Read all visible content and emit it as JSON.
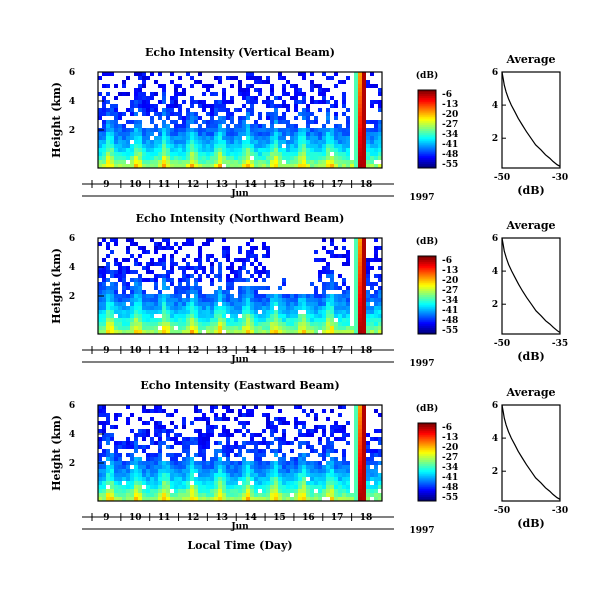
{
  "figure": {
    "xlabel": "Local Time (Day)",
    "month_label": "Jun",
    "year_label": "1997"
  },
  "chart_data": [
    {
      "type": "heatmap",
      "title": "Echo Intensity (Vertical Beam)",
      "ylabel": "Height (km)",
      "xlabel": "Local Time (Day)",
      "x_ticks": [
        "9",
        "10",
        "11",
        "12",
        "13",
        "14",
        "15",
        "16",
        "17",
        "18"
      ],
      "y_ticks": [
        "2",
        "4",
        "6"
      ],
      "colorbar": {
        "unit": "(dB)",
        "ticks": [
          "-6",
          "-13",
          "-20",
          "-27",
          "-34",
          "-41",
          "-48",
          "-55"
        ]
      }
    },
    {
      "type": "line",
      "title": "Average",
      "xlabel": "(dB)",
      "x_ticks": [
        "-50",
        "-30"
      ],
      "y_ticks": [
        "2",
        "4",
        "6"
      ],
      "xlim": [
        -50,
        -30
      ],
      "ylim": [
        0.2,
        6
      ],
      "profile": [
        [
          -50,
          6
        ],
        [
          -49.6,
          5.6
        ],
        [
          -49.2,
          5.2
        ],
        [
          -48.6,
          4.8
        ],
        [
          -47.8,
          4.4
        ],
        [
          -46.8,
          4.0
        ],
        [
          -45.6,
          3.6
        ],
        [
          -44.4,
          3.2
        ],
        [
          -43,
          2.8
        ],
        [
          -41.6,
          2.4
        ],
        [
          -40,
          2.0
        ],
        [
          -38.4,
          1.6
        ],
        [
          -36.6,
          1.3
        ],
        [
          -35,
          1.0
        ],
        [
          -33.6,
          0.8
        ],
        [
          -32.4,
          0.6
        ],
        [
          -31,
          0.4
        ],
        [
          -30,
          0.3
        ]
      ]
    },
    {
      "type": "heatmap",
      "title": "Echo Intensity (Northward Beam)",
      "ylabel": "Height (km)",
      "xlabel": "Local Time (Day)",
      "x_ticks": [
        "9",
        "10",
        "11",
        "12",
        "13",
        "14",
        "15",
        "16",
        "17",
        "18"
      ],
      "y_ticks": [
        "2",
        "4",
        "6"
      ],
      "colorbar": {
        "unit": "(dB)",
        "ticks": [
          "-6",
          "-13",
          "-20",
          "-27",
          "-34",
          "-41",
          "-48",
          "-55"
        ]
      }
    },
    {
      "type": "line",
      "title": "Average",
      "xlabel": "(dB)",
      "x_ticks": [
        "-50",
        "-35"
      ],
      "y_ticks": [
        "2",
        "4",
        "6"
      ],
      "xlim": [
        -50,
        -35
      ],
      "ylim": [
        0.2,
        6
      ],
      "profile": [
        [
          -50,
          6
        ],
        [
          -49.7,
          5.6
        ],
        [
          -49.4,
          5.2
        ],
        [
          -48.9,
          4.8
        ],
        [
          -48.3,
          4.4
        ],
        [
          -47.5,
          4.0
        ],
        [
          -46.6,
          3.6
        ],
        [
          -45.7,
          3.2
        ],
        [
          -44.7,
          2.8
        ],
        [
          -43.6,
          2.4
        ],
        [
          -42.4,
          2.0
        ],
        [
          -41.2,
          1.6
        ],
        [
          -39.9,
          1.3
        ],
        [
          -38.7,
          1.0
        ],
        [
          -37.6,
          0.8
        ],
        [
          -36.7,
          0.6
        ],
        [
          -35.7,
          0.4
        ],
        [
          -35.1,
          0.3
        ]
      ]
    },
    {
      "type": "heatmap",
      "title": "Echo Intensity (Eastward Beam)",
      "ylabel": "Height (km)",
      "xlabel": "Local Time (Day)",
      "x_ticks": [
        "9",
        "10",
        "11",
        "12",
        "13",
        "14",
        "15",
        "16",
        "17",
        "18"
      ],
      "y_ticks": [
        "2",
        "4",
        "6"
      ],
      "colorbar": {
        "unit": "(dB)",
        "ticks": [
          "-6",
          "-13",
          "-20",
          "-27",
          "-34",
          "-41",
          "-48",
          "-55"
        ]
      }
    },
    {
      "type": "line",
      "title": "Average",
      "xlabel": "(dB)",
      "x_ticks": [
        "-50",
        "-30"
      ],
      "y_ticks": [
        "2",
        "4",
        "6"
      ],
      "xlim": [
        -50,
        -30
      ],
      "ylim": [
        0.2,
        6
      ],
      "profile": [
        [
          -50,
          6
        ],
        [
          -49.6,
          5.6
        ],
        [
          -49.2,
          5.2
        ],
        [
          -48.6,
          4.8
        ],
        [
          -47.8,
          4.4
        ],
        [
          -46.8,
          4.0
        ],
        [
          -45.6,
          3.6
        ],
        [
          -44.4,
          3.2
        ],
        [
          -43,
          2.8
        ],
        [
          -41.6,
          2.4
        ],
        [
          -40,
          2.0
        ],
        [
          -38.4,
          1.6
        ],
        [
          -36.6,
          1.3
        ],
        [
          -35,
          1.0
        ],
        [
          -33.6,
          0.8
        ],
        [
          -32.4,
          0.6
        ],
        [
          -31,
          0.4
        ],
        [
          -30,
          0.3
        ]
      ]
    }
  ]
}
